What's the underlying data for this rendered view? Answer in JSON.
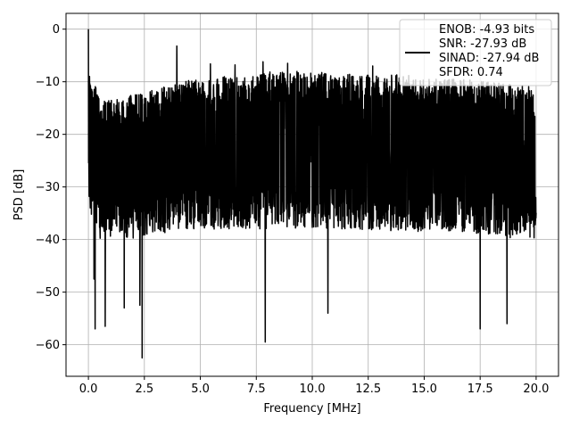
{
  "chart_data": {
    "type": "line",
    "xlabel": "Frequency [MHz]",
    "ylabel": "PSD [dB]",
    "xlim": [
      -1.0,
      21.0
    ],
    "ylim": [
      -66.0,
      3.0
    ],
    "xticks": [
      0.0,
      2.5,
      5.0,
      7.5,
      10.0,
      12.5,
      15.0,
      17.5,
      20.0
    ],
    "xtick_labels": [
      "0.0",
      "2.5",
      "5.0",
      "7.5",
      "10.0",
      "12.5",
      "15.0",
      "17.5",
      "20.0"
    ],
    "yticks": [
      0,
      -10,
      -20,
      -30,
      -40,
      -50,
      -60
    ],
    "ytick_labels": [
      "0",
      "−10",
      "−20",
      "−30",
      "−40",
      "−50",
      "−60"
    ],
    "grid": true,
    "legend_placement": "top-right",
    "line_color": "#000000",
    "series": [
      {
        "name": "ENOB: -4.93 bits\nSNR: -27.93 dB\nSINAD: -27.94 dB\nSFDR: 0.74",
        "legend_lines": [
          "ENOB: -4.93 bits",
          "SNR: -27.93 dB",
          "SINAD: -27.94 dB",
          "SFDR: 0.74"
        ],
        "envelope": {
          "x": [
            0.0,
            0.05,
            0.5,
            1.0,
            2.0,
            3.0,
            4.0,
            5.0,
            6.0,
            7.0,
            8.0,
            9.0,
            10.0,
            11.0,
            12.0,
            13.0,
            14.0,
            15.0,
            16.0,
            17.0,
            18.0,
            19.0,
            20.0
          ],
          "upper": [
            -15.0,
            -8.0,
            -13.0,
            -13.5,
            -12.5,
            -11.5,
            -10.0,
            -9.5,
            -9.0,
            -8.5,
            -8.0,
            -8.0,
            -8.0,
            -8.5,
            -8.5,
            -9.0,
            -8.5,
            -9.5,
            -9.5,
            -9.5,
            -10.0,
            -10.5,
            -11.0
          ],
          "lower": [
            -30.0,
            -35.0,
            -40.0,
            -40.0,
            -40.0,
            -39.0,
            -38.5,
            -38.0,
            -38.0,
            -38.0,
            -38.0,
            -38.0,
            -38.0,
            -38.0,
            -38.0,
            -38.5,
            -38.5,
            -38.5,
            -38.5,
            -39.0,
            -39.0,
            -40.0,
            -40.0
          ]
        },
        "peaks": [
          {
            "x": 0.0,
            "y": 0.0
          },
          {
            "x": 0.05,
            "y": -9.0
          },
          {
            "x": 3.95,
            "y": -3.2
          },
          {
            "x": 5.45,
            "y": -6.6
          },
          {
            "x": 6.55,
            "y": -6.8
          },
          {
            "x": 7.8,
            "y": -6.2
          },
          {
            "x": 8.9,
            "y": -6.5
          },
          {
            "x": 12.7,
            "y": -7.0
          }
        ],
        "dips": [
          {
            "x": 0.25,
            "y": -47.5
          },
          {
            "x": 0.3,
            "y": -57.0
          },
          {
            "x": 0.75,
            "y": -56.5
          },
          {
            "x": 1.6,
            "y": -53.0
          },
          {
            "x": 2.3,
            "y": -52.5
          },
          {
            "x": 2.4,
            "y": -62.5
          },
          {
            "x": 7.9,
            "y": -59.5
          },
          {
            "x": 10.7,
            "y": -54.0
          },
          {
            "x": 17.5,
            "y": -57.0
          },
          {
            "x": 18.7,
            "y": -56.0
          }
        ]
      }
    ]
  }
}
